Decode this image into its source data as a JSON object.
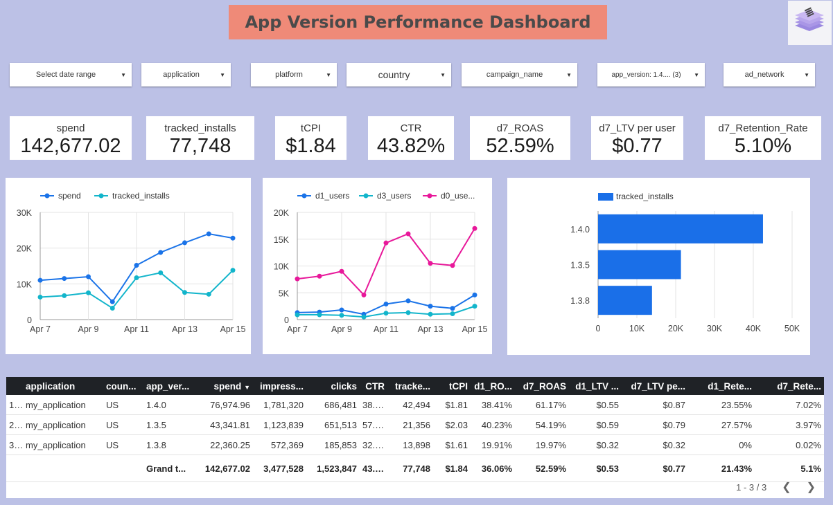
{
  "title": "App Version Performance Dashboard",
  "filters": [
    {
      "label": "Select date range"
    },
    {
      "label": "application"
    },
    {
      "label": "platform"
    },
    {
      "label": "country"
    },
    {
      "label": "campaign_name"
    },
    {
      "label": "app_version: 1.4.... (3)"
    },
    {
      "label": "ad_network"
    }
  ],
  "kpis": [
    {
      "label": "spend",
      "value": "142,677.02"
    },
    {
      "label": "tracked_installs",
      "value": "77,748"
    },
    {
      "label": "tCPI",
      "value": "$1.84"
    },
    {
      "label": "CTR",
      "value": "43.82%"
    },
    {
      "label": "d7_ROAS",
      "value": "52.59%"
    },
    {
      "label": "d7_LTV per user",
      "value": "$0.77"
    },
    {
      "label": "d7_Retention_Rate",
      "value": "5.10%"
    }
  ],
  "chart_data": [
    {
      "type": "line",
      "x": [
        "Apr 7",
        "Apr 8",
        "Apr 9",
        "Apr 10",
        "Apr 11",
        "Apr 12",
        "Apr 13",
        "Apr 14",
        "Apr 15"
      ],
      "xticks": [
        "Apr 7",
        "Apr 9",
        "Apr 11",
        "Apr 13",
        "Apr 15"
      ],
      "yticks": [
        "0",
        "10K",
        "20K",
        "30K"
      ],
      "ylim": [
        0,
        30000
      ],
      "legend": "top",
      "series": [
        {
          "name": "spend",
          "color": "#1a73e8",
          "values": [
            11000,
            11500,
            12000,
            5000,
            15200,
            18800,
            21500,
            24000,
            22800
          ]
        },
        {
          "name": "tracked_installs",
          "color": "#12b5cb",
          "values": [
            6300,
            6700,
            7500,
            3200,
            11700,
            13100,
            7600,
            7100,
            13800
          ]
        }
      ]
    },
    {
      "type": "line",
      "x": [
        "Apr 7",
        "Apr 8",
        "Apr 9",
        "Apr 10",
        "Apr 11",
        "Apr 12",
        "Apr 13",
        "Apr 14",
        "Apr 15"
      ],
      "xticks": [
        "Apr 7",
        "Apr 9",
        "Apr 11",
        "Apr 13",
        "Apr 15"
      ],
      "yticks": [
        "0",
        "5K",
        "10K",
        "15K",
        "20K"
      ],
      "ylim": [
        0,
        20000
      ],
      "legend": "top",
      "series": [
        {
          "name": "d1_users",
          "label": "d1_users",
          "color": "#1a73e8",
          "values": [
            1300,
            1400,
            1800,
            1000,
            2900,
            3500,
            2500,
            2100,
            4600
          ]
        },
        {
          "name": "d3_users",
          "label": "d3_users",
          "color": "#12b5cb",
          "values": [
            900,
            900,
            800,
            500,
            1200,
            1300,
            1000,
            1100,
            2500
          ]
        },
        {
          "name": "d0_users",
          "label": "d0_use...",
          "color": "#e8189a",
          "values": [
            7600,
            8100,
            9000,
            4600,
            14300,
            16000,
            10500,
            10100,
            17000
          ]
        }
      ]
    },
    {
      "type": "bar",
      "orientation": "horizontal",
      "categories": [
        "1.4.0",
        "1.3.5",
        "1.3.8"
      ],
      "values": [
        42494,
        21356,
        13898
      ],
      "xticks": [
        "0",
        "10K",
        "20K",
        "30K",
        "40K",
        "50K"
      ],
      "xlim": [
        0,
        50000
      ],
      "legend": "top",
      "series": [
        {
          "name": "tracked_installs",
          "color": "#1a6fe8"
        }
      ]
    }
  ],
  "table": {
    "headers": [
      "application",
      "coun...",
      "app_ver...",
      "spend",
      "impress...",
      "clicks",
      "CTR",
      "tracke...",
      "tCPI",
      "d1_RO...",
      "d7_ROAS",
      "d1_LTV ...",
      "d7_LTV pe...",
      "d1_Rete...",
      "d7_Rete..."
    ],
    "sort_indicator": "▼",
    "rows": [
      {
        "idx": "1...",
        "cells": [
          "my_application",
          "US",
          "1.4.0",
          "76,974.96",
          "1,781,320",
          "686,481",
          "38.5...",
          "42,494",
          "$1.81",
          "38.41%",
          "61.17%",
          "$0.55",
          "$0.87",
          "23.55%",
          "7.02%"
        ]
      },
      {
        "idx": "2...",
        "cells": [
          "my_application",
          "US",
          "1.3.5",
          "43,341.81",
          "1,123,839",
          "651,513",
          "57.97...",
          "21,356",
          "$2.03",
          "40.23%",
          "54.19%",
          "$0.59",
          "$0.79",
          "27.57%",
          "3.97%"
        ]
      },
      {
        "idx": "3...",
        "cells": [
          "my_application",
          "US",
          "1.3.8",
          "22,360.25",
          "572,369",
          "185,853",
          "32.4...",
          "13,898",
          "$1.61",
          "19.91%",
          "19.97%",
          "$0.32",
          "$0.32",
          "0%",
          "0.02%"
        ]
      }
    ],
    "total": [
      "",
      "",
      "Grand t...",
      "142,677.02",
      "3,477,528",
      "1,523,847",
      "43.8...",
      "77,748",
      "$1.84",
      "36.06%",
      "52.59%",
      "$0.53",
      "$0.77",
      "21.43%",
      "5.1%"
    ],
    "pager": "1 - 3 / 3",
    "prev_icon": "chevron-left-icon",
    "next_icon": "chevron-right-icon"
  }
}
